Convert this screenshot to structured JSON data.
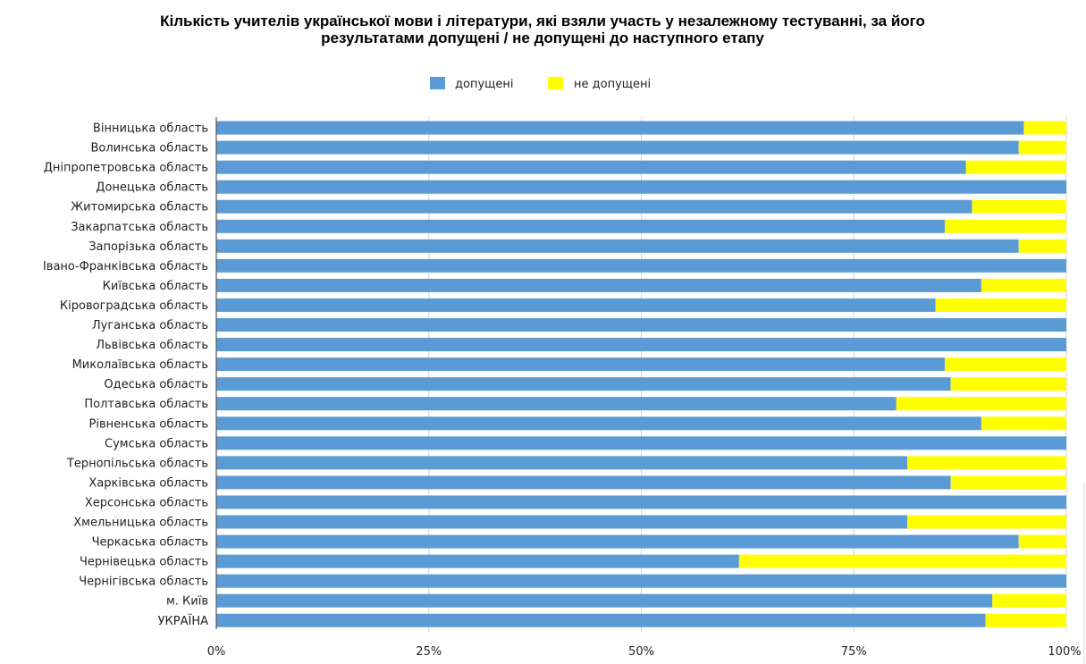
{
  "chart_data": {
    "type": "bar",
    "orientation": "horizontal",
    "stacked": "percent",
    "title": [
      "Кількість учителів української мови і літератури, які взяли участь у незалежному тестуванні, за його",
      "результатами допущені / не допущені до наступного етапу"
    ],
    "legend_position": "top",
    "grid": true,
    "xlim": [
      0,
      100
    ],
    "ticks": [
      "0%",
      "25%",
      "50%",
      "75%",
      "100%"
    ],
    "categories": [
      "Вінницька область",
      "Волинська область",
      "Дніпропетровська область",
      "Донецька область",
      "Житомирська область",
      "Закарпатська область",
      "Запорізька область",
      "Івано-Франківська область",
      "Київська область",
      "Кіровоградська область",
      "Луганська область",
      "Львівська область",
      "Миколаївська область",
      "Одеська область",
      "Полтавська область",
      "Рівненська область",
      "Сумська область",
      "Тернопільська область",
      "Харківська область",
      "Херсонська область",
      "Хмельницька область",
      "Черкаська область",
      "Чернівецька область",
      "Чернігівська область",
      "м. Київ",
      "УКРАЇНА"
    ],
    "series": [
      {
        "name": "допущені",
        "color": "#5b9bd5",
        "values": [
          95,
          94.4,
          88.2,
          100,
          88.9,
          85.7,
          94.4,
          100,
          90,
          84.6,
          100,
          100,
          85.7,
          86.4,
          80,
          90,
          100,
          81.3,
          86.4,
          100,
          81.3,
          94.4,
          61.5,
          100,
          91.3,
          90.5
        ]
      },
      {
        "name": "не допущені",
        "color": "#ffff00",
        "values": [
          5,
          5.6,
          11.8,
          0,
          11.1,
          14.3,
          5.6,
          0,
          10,
          15.4,
          0,
          0,
          14.3,
          13.6,
          20,
          10,
          0,
          18.7,
          13.6,
          0,
          18.7,
          5.6,
          38.5,
          0,
          8.7,
          9.5
        ]
      }
    ]
  }
}
